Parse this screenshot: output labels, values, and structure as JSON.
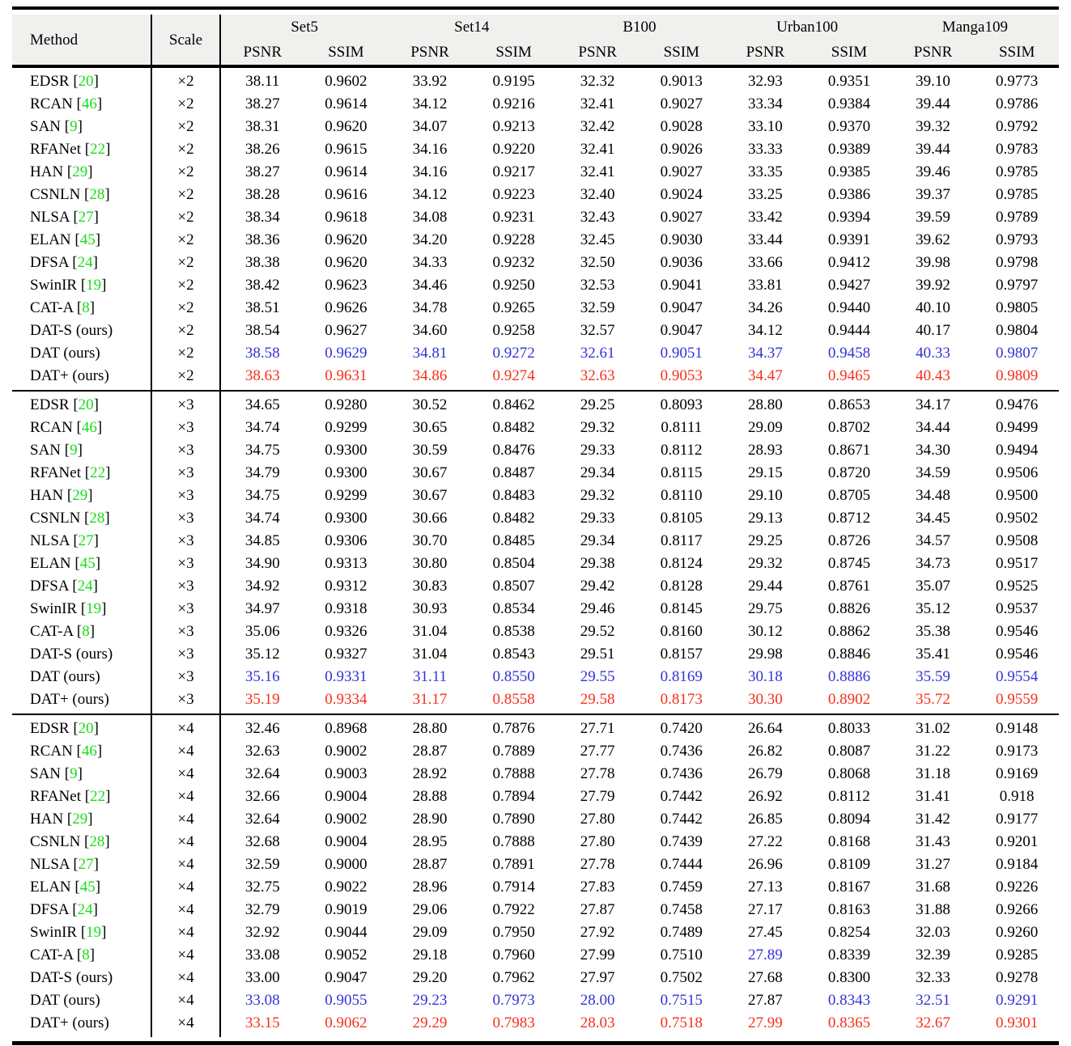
{
  "colors": {
    "citation_green": "#17dd17",
    "second_best_blue": "#3232d8",
    "best_red": "#f5301c",
    "header_bg": "#f0f0ee",
    "rule": "#000000"
  },
  "header": {
    "method_label": "Method",
    "scale_label": "Scale",
    "groups": [
      "Set5",
      "Set14",
      "B100",
      "Urban100",
      "Manga109"
    ],
    "metrics": [
      "PSNR",
      "SSIM"
    ]
  },
  "blocks": [
    {
      "scale_label": "×2",
      "rows": [
        {
          "method": "EDSR",
          "cite": "20",
          "values": [
            "38.11",
            "0.9602",
            "33.92",
            "0.9195",
            "32.32",
            "0.9013",
            "32.93",
            "0.9351",
            "39.10",
            "0.9773"
          ],
          "highlight": "black"
        },
        {
          "method": "RCAN",
          "cite": "46",
          "values": [
            "38.27",
            "0.9614",
            "34.12",
            "0.9216",
            "32.41",
            "0.9027",
            "33.34",
            "0.9384",
            "39.44",
            "0.9786"
          ],
          "highlight": "black"
        },
        {
          "method": "SAN",
          "cite": "9",
          "values": [
            "38.31",
            "0.9620",
            "34.07",
            "0.9213",
            "32.42",
            "0.9028",
            "33.10",
            "0.9370",
            "39.32",
            "0.9792"
          ],
          "highlight": "black"
        },
        {
          "method": "RFANet",
          "cite": "22",
          "values": [
            "38.26",
            "0.9615",
            "34.16",
            "0.9220",
            "32.41",
            "0.9026",
            "33.33",
            "0.9389",
            "39.44",
            "0.9783"
          ],
          "highlight": "black"
        },
        {
          "method": "HAN",
          "cite": "29",
          "values": [
            "38.27",
            "0.9614",
            "34.16",
            "0.9217",
            "32.41",
            "0.9027",
            "33.35",
            "0.9385",
            "39.46",
            "0.9785"
          ],
          "highlight": "black"
        },
        {
          "method": "CSNLN",
          "cite": "28",
          "values": [
            "38.28",
            "0.9616",
            "34.12",
            "0.9223",
            "32.40",
            "0.9024",
            "33.25",
            "0.9386",
            "39.37",
            "0.9785"
          ],
          "highlight": "black"
        },
        {
          "method": "NLSA",
          "cite": "27",
          "values": [
            "38.34",
            "0.9618",
            "34.08",
            "0.9231",
            "32.43",
            "0.9027",
            "33.42",
            "0.9394",
            "39.59",
            "0.9789"
          ],
          "highlight": "black"
        },
        {
          "method": "ELAN",
          "cite": "45",
          "values": [
            "38.36",
            "0.9620",
            "34.20",
            "0.9228",
            "32.45",
            "0.9030",
            "33.44",
            "0.9391",
            "39.62",
            "0.9793"
          ],
          "highlight": "black"
        },
        {
          "method": "DFSA",
          "cite": "24",
          "values": [
            "38.38",
            "0.9620",
            "34.33",
            "0.9232",
            "32.50",
            "0.9036",
            "33.66",
            "0.9412",
            "39.98",
            "0.9798"
          ],
          "highlight": "black"
        },
        {
          "method": "SwinIR",
          "cite": "19",
          "values": [
            "38.42",
            "0.9623",
            "34.46",
            "0.9250",
            "32.53",
            "0.9041",
            "33.81",
            "0.9427",
            "39.92",
            "0.9797"
          ],
          "highlight": "black"
        },
        {
          "method": "CAT-A",
          "cite": "8",
          "values": [
            "38.51",
            "0.9626",
            "34.78",
            "0.9265",
            "32.59",
            "0.9047",
            "34.26",
            "0.9440",
            "40.10",
            "0.9805"
          ],
          "highlight": "black"
        },
        {
          "method": "DAT-S (ours)",
          "cite": null,
          "values": [
            "38.54",
            "0.9627",
            "34.60",
            "0.9258",
            "32.57",
            "0.9047",
            "34.12",
            "0.9444",
            "40.17",
            "0.9804"
          ],
          "highlight": "black"
        },
        {
          "method": "DAT (ours)",
          "cite": null,
          "values": [
            "38.58",
            "0.9629",
            "34.81",
            "0.9272",
            "32.61",
            "0.9051",
            "34.37",
            "0.9458",
            "40.33",
            "0.9807"
          ],
          "highlight": "blue"
        },
        {
          "method": "DAT+ (ours)",
          "cite": null,
          "values": [
            "38.63",
            "0.9631",
            "34.86",
            "0.9274",
            "32.63",
            "0.9053",
            "34.47",
            "0.9465",
            "40.43",
            "0.9809"
          ],
          "highlight": "red"
        }
      ]
    },
    {
      "scale_label": "×3",
      "rows": [
        {
          "method": "EDSR",
          "cite": "20",
          "values": [
            "34.65",
            "0.9280",
            "30.52",
            "0.8462",
            "29.25",
            "0.8093",
            "28.80",
            "0.8653",
            "34.17",
            "0.9476"
          ],
          "highlight": "black"
        },
        {
          "method": "RCAN",
          "cite": "46",
          "values": [
            "34.74",
            "0.9299",
            "30.65",
            "0.8482",
            "29.32",
            "0.8111",
            "29.09",
            "0.8702",
            "34.44",
            "0.9499"
          ],
          "highlight": "black"
        },
        {
          "method": "SAN",
          "cite": "9",
          "values": [
            "34.75",
            "0.9300",
            "30.59",
            "0.8476",
            "29.33",
            "0.8112",
            "28.93",
            "0.8671",
            "34.30",
            "0.9494"
          ],
          "highlight": "black"
        },
        {
          "method": "RFANet",
          "cite": "22",
          "values": [
            "34.79",
            "0.9300",
            "30.67",
            "0.8487",
            "29.34",
            "0.8115",
            "29.15",
            "0.8720",
            "34.59",
            "0.9506"
          ],
          "highlight": "black"
        },
        {
          "method": "HAN",
          "cite": "29",
          "values": [
            "34.75",
            "0.9299",
            "30.67",
            "0.8483",
            "29.32",
            "0.8110",
            "29.10",
            "0.8705",
            "34.48",
            "0.9500"
          ],
          "highlight": "black"
        },
        {
          "method": "CSNLN",
          "cite": "28",
          "values": [
            "34.74",
            "0.9300",
            "30.66",
            "0.8482",
            "29.33",
            "0.8105",
            "29.13",
            "0.8712",
            "34.45",
            "0.9502"
          ],
          "highlight": "black"
        },
        {
          "method": "NLSA",
          "cite": "27",
          "values": [
            "34.85",
            "0.9306",
            "30.70",
            "0.8485",
            "29.34",
            "0.8117",
            "29.25",
            "0.8726",
            "34.57",
            "0.9508"
          ],
          "highlight": "black"
        },
        {
          "method": "ELAN",
          "cite": "45",
          "values": [
            "34.90",
            "0.9313",
            "30.80",
            "0.8504",
            "29.38",
            "0.8124",
            "29.32",
            "0.8745",
            "34.73",
            "0.9517"
          ],
          "highlight": "black"
        },
        {
          "method": "DFSA",
          "cite": "24",
          "values": [
            "34.92",
            "0.9312",
            "30.83",
            "0.8507",
            "29.42",
            "0.8128",
            "29.44",
            "0.8761",
            "35.07",
            "0.9525"
          ],
          "highlight": "black"
        },
        {
          "method": "SwinIR",
          "cite": "19",
          "values": [
            "34.97",
            "0.9318",
            "30.93",
            "0.8534",
            "29.46",
            "0.8145",
            "29.75",
            "0.8826",
            "35.12",
            "0.9537"
          ],
          "highlight": "black"
        },
        {
          "method": "CAT-A",
          "cite": "8",
          "values": [
            "35.06",
            "0.9326",
            "31.04",
            "0.8538",
            "29.52",
            "0.8160",
            "30.12",
            "0.8862",
            "35.38",
            "0.9546"
          ],
          "highlight": "black"
        },
        {
          "method": "DAT-S (ours)",
          "cite": null,
          "values": [
            "35.12",
            "0.9327",
            "31.04",
            "0.8543",
            "29.51",
            "0.8157",
            "29.98",
            "0.8846",
            "35.41",
            "0.9546"
          ],
          "highlight": "black"
        },
        {
          "method": "DAT (ours)",
          "cite": null,
          "values": [
            "35.16",
            "0.9331",
            "31.11",
            "0.8550",
            "29.55",
            "0.8169",
            "30.18",
            "0.8886",
            "35.59",
            "0.9554"
          ],
          "highlight": "blue"
        },
        {
          "method": "DAT+ (ours)",
          "cite": null,
          "values": [
            "35.19",
            "0.9334",
            "31.17",
            "0.8558",
            "29.58",
            "0.8173",
            "30.30",
            "0.8902",
            "35.72",
            "0.9559"
          ],
          "highlight": "red"
        }
      ]
    },
    {
      "scale_label": "×4",
      "rows": [
        {
          "method": "EDSR",
          "cite": "20",
          "values": [
            "32.46",
            "0.8968",
            "28.80",
            "0.7876",
            "27.71",
            "0.7420",
            "26.64",
            "0.8033",
            "31.02",
            "0.9148"
          ],
          "highlight": "black"
        },
        {
          "method": "RCAN",
          "cite": "46",
          "values": [
            "32.63",
            "0.9002",
            "28.87",
            "0.7889",
            "27.77",
            "0.7436",
            "26.82",
            "0.8087",
            "31.22",
            "0.9173"
          ],
          "highlight": "black"
        },
        {
          "method": "SAN",
          "cite": "9",
          "values": [
            "32.64",
            "0.9003",
            "28.92",
            "0.7888",
            "27.78",
            "0.7436",
            "26.79",
            "0.8068",
            "31.18",
            "0.9169"
          ],
          "highlight": "black"
        },
        {
          "method": "RFANet",
          "cite": "22",
          "values": [
            "32.66",
            "0.9004",
            "28.88",
            "0.7894",
            "27.79",
            "0.7442",
            "26.92",
            "0.8112",
            "31.41",
            "0.918"
          ],
          "highlight": "black"
        },
        {
          "method": "HAN",
          "cite": "29",
          "values": [
            "32.64",
            "0.9002",
            "28.90",
            "0.7890",
            "27.80",
            "0.7442",
            "26.85",
            "0.8094",
            "31.42",
            "0.9177"
          ],
          "highlight": "black"
        },
        {
          "method": "CSNLN",
          "cite": "28",
          "values": [
            "32.68",
            "0.9004",
            "28.95",
            "0.7888",
            "27.80",
            "0.7439",
            "27.22",
            "0.8168",
            "31.43",
            "0.9201"
          ],
          "highlight": "black"
        },
        {
          "method": "NLSA",
          "cite": "27",
          "values": [
            "32.59",
            "0.9000",
            "28.87",
            "0.7891",
            "27.78",
            "0.7444",
            "26.96",
            "0.8109",
            "31.27",
            "0.9184"
          ],
          "highlight": "black"
        },
        {
          "method": "ELAN",
          "cite": "45",
          "values": [
            "32.75",
            "0.9022",
            "28.96",
            "0.7914",
            "27.83",
            "0.7459",
            "27.13",
            "0.8167",
            "31.68",
            "0.9226"
          ],
          "highlight": "black"
        },
        {
          "method": "DFSA",
          "cite": "24",
          "values": [
            "32.79",
            "0.9019",
            "29.06",
            "0.7922",
            "27.87",
            "0.7458",
            "27.17",
            "0.8163",
            "31.88",
            "0.9266"
          ],
          "highlight": "black"
        },
        {
          "method": "SwinIR",
          "cite": "19",
          "values": [
            "32.92",
            "0.9044",
            "29.09",
            "0.7950",
            "27.92",
            "0.7489",
            "27.45",
            "0.8254",
            "32.03",
            "0.9260"
          ],
          "highlight": "black"
        },
        {
          "method": "CAT-A",
          "cite": "8",
          "values": [
            "33.08",
            "0.9052",
            "29.18",
            "0.7960",
            "27.99",
            "0.7510",
            "27.89",
            "0.8339",
            "32.39",
            "0.9285"
          ],
          "highlight": "black",
          "cell_overrides": {
            "6": "blue"
          }
        },
        {
          "method": "DAT-S (ours)",
          "cite": null,
          "values": [
            "33.00",
            "0.9047",
            "29.20",
            "0.7962",
            "27.97",
            "0.7502",
            "27.68",
            "0.8300",
            "32.33",
            "0.9278"
          ],
          "highlight": "black"
        },
        {
          "method": "DAT (ours)",
          "cite": null,
          "values": [
            "33.08",
            "0.9055",
            "29.23",
            "0.7973",
            "28.00",
            "0.7515",
            "27.87",
            "0.8343",
            "32.51",
            "0.9291"
          ],
          "highlight": "blue",
          "cell_overrides": {
            "6": "black"
          }
        },
        {
          "method": "DAT+ (ours)",
          "cite": null,
          "values": [
            "33.15",
            "0.9062",
            "29.29",
            "0.7983",
            "28.03",
            "0.7518",
            "27.99",
            "0.8365",
            "32.67",
            "0.9301"
          ],
          "highlight": "red"
        }
      ]
    }
  ]
}
